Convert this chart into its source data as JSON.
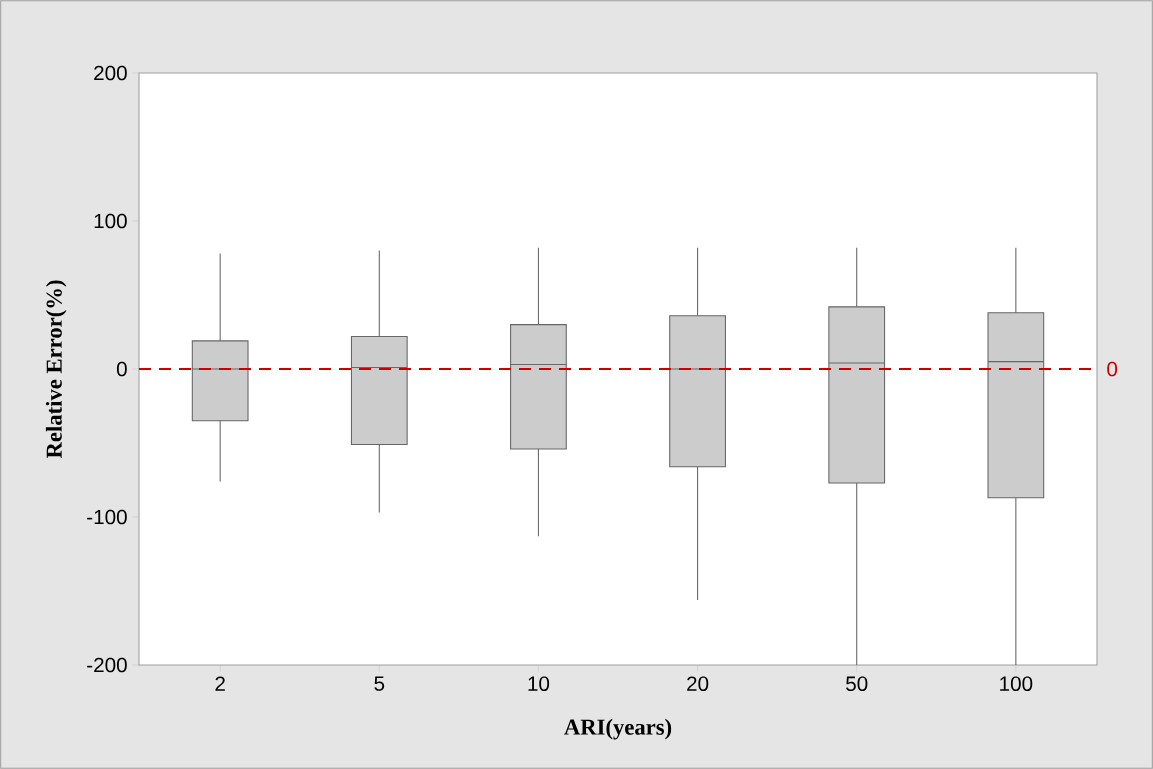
{
  "chart_data": {
    "type": "box",
    "xlabel": "ARI(years)",
    "ylabel": "Relative Error(%)",
    "categories": [
      "2",
      "5",
      "10",
      "20",
      "50",
      "100"
    ],
    "color": "#cccccc",
    "boxes": [
      {
        "low": -76,
        "q1": -35,
        "median": 0,
        "q3": 19,
        "high": 78
      },
      {
        "low": -97,
        "q1": -51,
        "median": 1,
        "q3": 22,
        "high": 80
      },
      {
        "low": -113,
        "q1": -54,
        "median": 3,
        "q3": 30,
        "high": 82
      },
      {
        "low": -156,
        "q1": -66,
        "median": 0,
        "q3": 36,
        "high": 82
      },
      {
        "low": -200,
        "q1": -77,
        "median": 4,
        "q3": 42,
        "high": 82
      },
      {
        "low": -200,
        "q1": -87,
        "median": 5,
        "q3": 38,
        "high": 82
      }
    ],
    "ylim": [
      -200,
      200
    ],
    "yticks": [
      -200,
      -100,
      0,
      100,
      200
    ],
    "ref_lines": [
      {
        "axis": "y",
        "value": 0,
        "label": "0",
        "color": "#cc0000",
        "line_style": "dashed"
      }
    ]
  }
}
